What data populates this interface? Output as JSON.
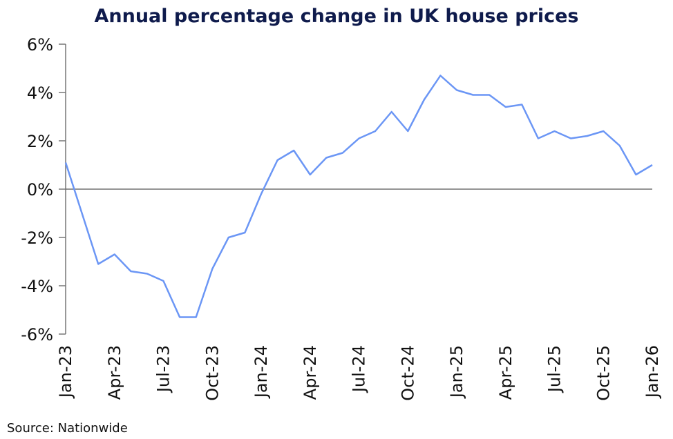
{
  "chart_data": {
    "type": "line",
    "title": "Annual percentage change in UK house prices",
    "xlabel": "",
    "ylabel": "",
    "ylim": [
      -6,
      6
    ],
    "yticks": [
      "-6%",
      "-4%",
      "-2%",
      "0%",
      "2%",
      "4%",
      "6%"
    ],
    "ytick_values": [
      -6,
      -4,
      -2,
      0,
      2,
      4,
      6
    ],
    "xtick_labels": [
      "Jan-23",
      "Apr-23",
      "Jul-23",
      "Oct-23",
      "Jan-24",
      "Apr-24",
      "Jul-24",
      "Oct-24",
      "Jan-25",
      "Apr-25",
      "Jul-25",
      "Oct-25",
      "Jan-26"
    ],
    "x": [
      "Jan-23",
      "Feb-23",
      "Mar-23",
      "Apr-23",
      "May-23",
      "Jun-23",
      "Jul-23",
      "Aug-23",
      "Sep-23",
      "Oct-23",
      "Nov-23",
      "Dec-23",
      "Jan-24",
      "Feb-24",
      "Mar-24",
      "Apr-24",
      "May-24",
      "Jun-24",
      "Jul-24",
      "Aug-24",
      "Sep-24",
      "Oct-24",
      "Nov-24",
      "Dec-24",
      "Jan-25",
      "Feb-25",
      "Mar-25",
      "Apr-25",
      "May-25",
      "Jun-25",
      "Jul-25",
      "Aug-25",
      "Sep-25",
      "Oct-25",
      "Nov-25",
      "Dec-25",
      "Jan-26"
    ],
    "series": [
      {
        "values": [
          1.1,
          -1.0,
          -3.1,
          -2.7,
          -3.4,
          -3.5,
          -3.8,
          -5.3,
          -5.3,
          -3.3,
          -2.0,
          -1.8,
          -0.2,
          1.2,
          1.6,
          0.6,
          1.3,
          1.5,
          2.1,
          2.4,
          3.2,
          2.4,
          3.7,
          4.7,
          4.1,
          3.9,
          3.9,
          3.4,
          3.5,
          2.1,
          2.4,
          2.1,
          2.2,
          2.4,
          1.8,
          0.6,
          1.0
        ],
        "color": "#6b96f5"
      }
    ],
    "grid": false,
    "zero_line": true,
    "legend": "none"
  },
  "source": "Source: Nationwide"
}
